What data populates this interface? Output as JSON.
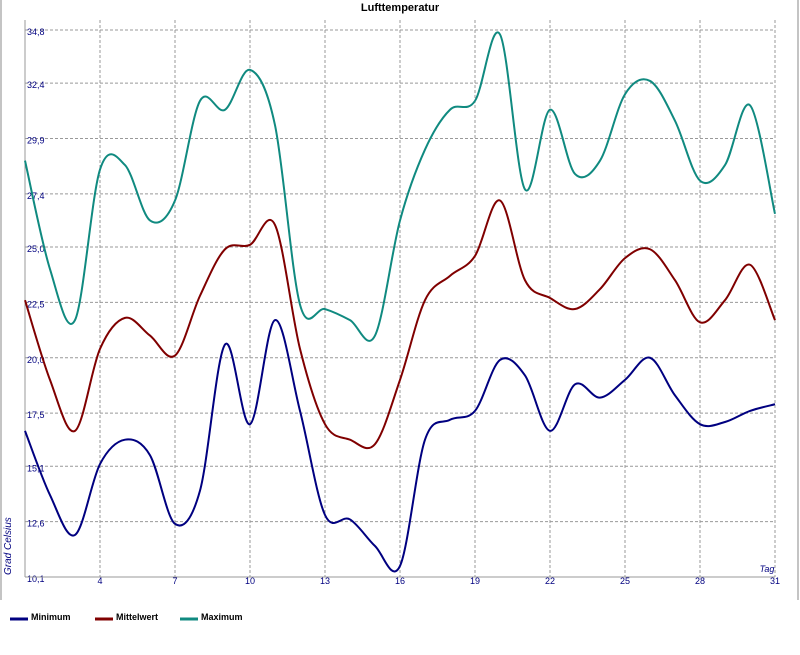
{
  "chart_data": {
    "type": "line",
    "title": "Lufttemperatur",
    "x_label": "Tag",
    "y_label": "Grad Celsius",
    "x": [
      1,
      2,
      3,
      4,
      5,
      6,
      7,
      8,
      9,
      10,
      11,
      12,
      13,
      14,
      15,
      16,
      17,
      18,
      19,
      20,
      21,
      22,
      23,
      24,
      25,
      26,
      27,
      28,
      29,
      30,
      31
    ],
    "xlim": [
      1,
      31
    ],
    "xticks": [
      4,
      7,
      10,
      13,
      16,
      19,
      22,
      25,
      28,
      31
    ],
    "ylim": [
      10.1,
      34.8
    ],
    "yticks": [
      {
        "value": 10.1,
        "label": "10,1"
      },
      {
        "value": 12.6,
        "label": "12,6"
      },
      {
        "value": 15.1,
        "label": "15,1"
      },
      {
        "value": 17.5,
        "label": "17,5"
      },
      {
        "value": 20.0,
        "label": "20,0"
      },
      {
        "value": 22.5,
        "label": "22,5"
      },
      {
        "value": 25.0,
        "label": "25,0"
      },
      {
        "value": 27.4,
        "label": "27,4"
      },
      {
        "value": 29.9,
        "label": "29,9"
      },
      {
        "value": 32.4,
        "label": "32,4"
      },
      {
        "value": 34.8,
        "label": "34,8"
      }
    ],
    "grid": true,
    "series": [
      {
        "name": "Minimum",
        "color": "#000080",
        "values": [
          16.7,
          13.8,
          12.0,
          15.2,
          16.3,
          15.6,
          12.5,
          14.0,
          20.6,
          17.0,
          21.7,
          17.6,
          12.9,
          12.7,
          11.5,
          10.6,
          16.3,
          17.2,
          17.6,
          19.9,
          19.2,
          16.7,
          18.8,
          18.2,
          19.0,
          20.0,
          18.3,
          17.0,
          17.1,
          17.6,
          17.9
        ]
      },
      {
        "name": "Mittelwert",
        "color": "#800000",
        "values": [
          22.6,
          19.0,
          16.7,
          20.4,
          21.8,
          21.0,
          20.1,
          22.8,
          24.9,
          25.1,
          26.0,
          20.4,
          17.0,
          16.3,
          16.1,
          19.0,
          22.6,
          23.7,
          24.6,
          27.1,
          23.5,
          22.7,
          22.2,
          23.1,
          24.5,
          24.9,
          23.5,
          21.6,
          22.6,
          24.2,
          21.7
        ]
      },
      {
        "name": "Maximum",
        "color": "#108a80",
        "values": [
          28.9,
          24.0,
          21.7,
          28.5,
          28.7,
          26.2,
          27.1,
          31.6,
          31.2,
          33.0,
          30.5,
          22.4,
          22.2,
          21.7,
          21.0,
          26.2,
          29.4,
          31.2,
          31.6,
          34.6,
          27.6,
          31.2,
          28.3,
          28.9,
          31.9,
          32.5,
          30.7,
          28.0,
          28.7,
          31.4,
          26.5
        ]
      }
    ]
  }
}
